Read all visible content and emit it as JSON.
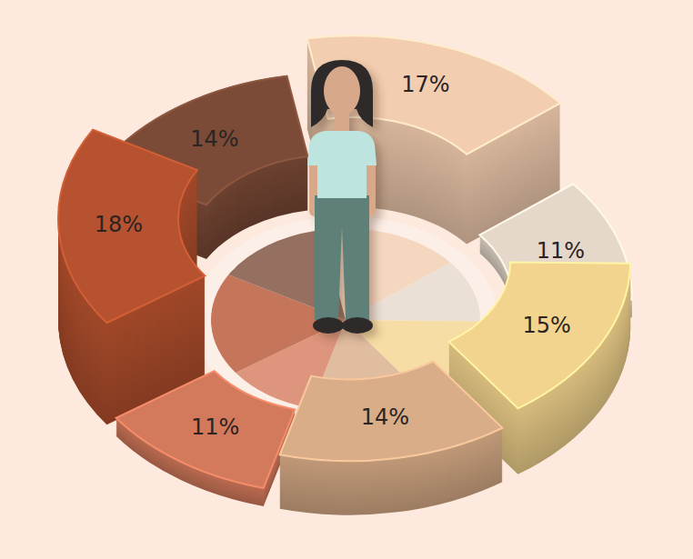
{
  "chart_data": {
    "type": "pie",
    "values": [
      17,
      11,
      15,
      14,
      11,
      18,
      14
    ],
    "value_labels": [
      "17%",
      "11%",
      "15%",
      "14%",
      "11%",
      "18%",
      "14%"
    ],
    "colors": [
      "#f2cdb0",
      "#e5d8cb",
      "#f2d48e",
      "#d9ad88",
      "#d47a5c",
      "#b6522f",
      "#7b4b37"
    ],
    "data_labels": true
  }
}
